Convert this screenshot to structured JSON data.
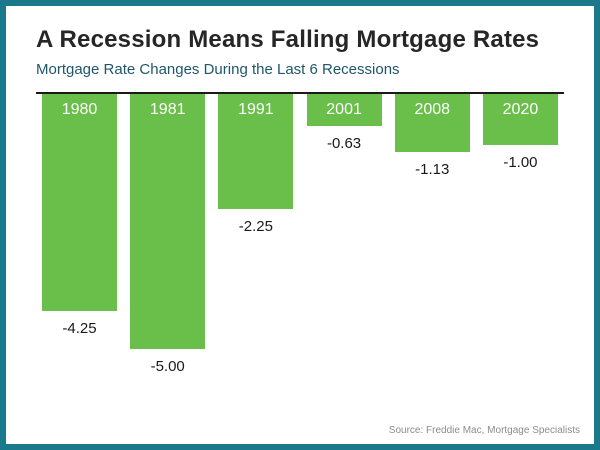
{
  "frame": {
    "border_color": "#1a7a8c",
    "background": "#ffffff"
  },
  "header": {
    "title": "A Recession Means Falling Mortgage Rates",
    "subtitle": "Mortgage Rate Changes During the Last 6 Recessions"
  },
  "chart_data": {
    "type": "bar",
    "orientation": "vertical-downward",
    "categories": [
      "1980",
      "1981",
      "1991",
      "2001",
      "2008",
      "2020"
    ],
    "values": [
      -4.25,
      -5.0,
      -2.25,
      -0.63,
      -1.13,
      -1.0
    ],
    "value_labels": [
      "-4.25",
      "-5.00",
      "-2.25",
      "-0.63",
      "-1.13",
      "-1.00"
    ],
    "title": "A Recession Means Falling Mortgage Rates",
    "subtitle": "Mortgage Rate Changes During the Last 6 Recessions",
    "xlabel": "",
    "ylabel": "",
    "ylim": [
      -5.5,
      0
    ],
    "grid": false,
    "legend": false,
    "bar_color": "#6abf4a",
    "axis_line_color": "#1a1a1a",
    "category_label_position": "inside-top-white",
    "value_label_position": "below-bar"
  },
  "footer": {
    "source": "Source: Freddie Mac, Mortgage Specialists"
  }
}
